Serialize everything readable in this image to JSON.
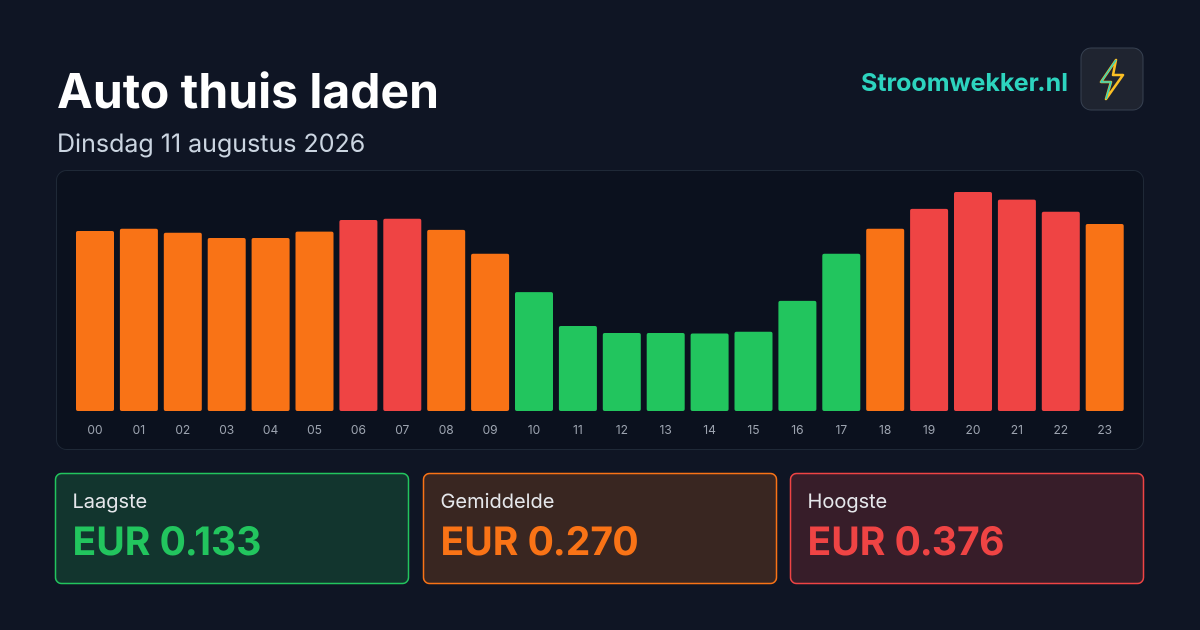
{
  "header": {
    "title": "Auto thuis laden",
    "subtitle": "Dinsdag 11 augustus 2026",
    "brand": "Stroomwekker.nl"
  },
  "chart_data": {
    "type": "bar",
    "categories": [
      "00",
      "01",
      "02",
      "03",
      "04",
      "05",
      "06",
      "07",
      "08",
      "09",
      "10",
      "11",
      "12",
      "13",
      "14",
      "15",
      "16",
      "17",
      "18",
      "19",
      "20",
      "21",
      "22",
      "23"
    ],
    "values": [
      0.309,
      0.313,
      0.306,
      0.297,
      0.297,
      0.308,
      0.328,
      0.33,
      0.311,
      0.27,
      0.204,
      0.146,
      0.134,
      0.134,
      0.133,
      0.136,
      0.189,
      0.27,
      0.313,
      0.347,
      0.376,
      0.363,
      0.342,
      0.321
    ],
    "colors": [
      "#f97316",
      "#f97316",
      "#f97316",
      "#f97316",
      "#f97316",
      "#f97316",
      "#ef4444",
      "#ef4444",
      "#f97316",
      "#f97316",
      "#22c55e",
      "#22c55e",
      "#22c55e",
      "#22c55e",
      "#22c55e",
      "#22c55e",
      "#22c55e",
      "#22c55e",
      "#f97316",
      "#ef4444",
      "#ef4444",
      "#ef4444",
      "#ef4444",
      "#f97316"
    ]
  },
  "stats": [
    {
      "label": "Laagste",
      "value": "EUR 0.133",
      "color": "#22c55e"
    },
    {
      "label": "Gemiddelde",
      "value": "EUR 0.270",
      "color": "#f97316"
    },
    {
      "label": "Hoogste",
      "value": "EUR 0.376",
      "color": "#ef4444"
    }
  ]
}
